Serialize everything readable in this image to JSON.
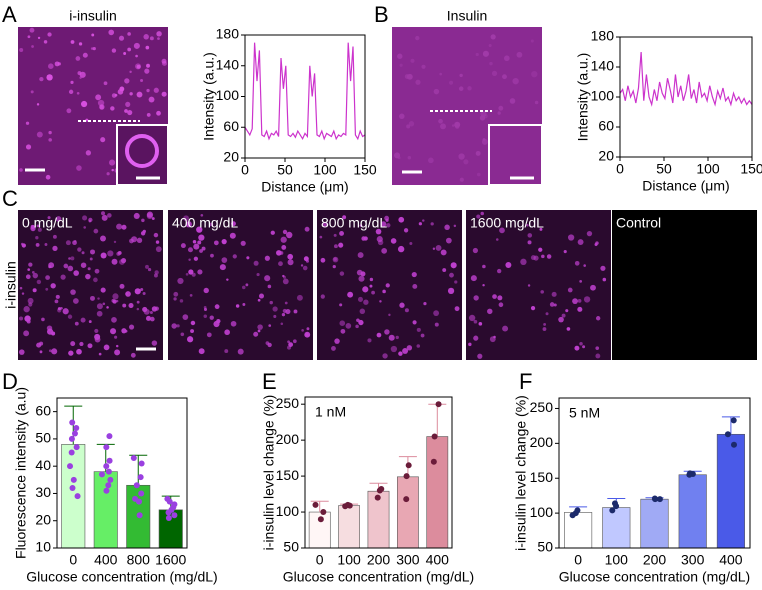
{
  "panel_labels": [
    "A",
    "B",
    "C",
    "D",
    "E",
    "F"
  ],
  "images": {
    "a_title": "i-insulin",
    "b_title": "Insulin",
    "c_row_label": "i-insulin",
    "c_labels": [
      "0 mg/dL",
      "400 mg/dL",
      "800 mg/dL",
      "1600 mg/dL",
      "Control"
    ]
  },
  "chart_data": [
    {
      "type": "line",
      "x_label": "Distance (μm)",
      "y_label": "Intensity (a.u.)",
      "color": "#cc33cc",
      "x": [
        0,
        3,
        6,
        9,
        12,
        15,
        18,
        21,
        24,
        27,
        30,
        33,
        36,
        39,
        42,
        45,
        48,
        51,
        54,
        57,
        60,
        63,
        66,
        69,
        72,
        75,
        78,
        81,
        84,
        87,
        90,
        93,
        96,
        99,
        102,
        105,
        108,
        111,
        114,
        117,
        120,
        123,
        126,
        129,
        132,
        135,
        138,
        141,
        144,
        147,
        150
      ],
      "values": [
        60,
        55,
        50,
        58,
        170,
        120,
        160,
        50,
        48,
        55,
        45,
        52,
        50,
        55,
        48,
        150,
        110,
        140,
        50,
        48,
        52,
        47,
        55,
        50,
        45,
        52,
        48,
        140,
        100,
        130,
        50,
        48,
        55,
        45,
        52,
        50,
        48,
        55,
        45,
        50,
        48,
        52,
        50,
        170,
        120,
        165,
        50,
        45,
        55,
        48,
        50
      ],
      "xlim": [
        0,
        150
      ],
      "xticks": [
        0,
        50,
        100,
        150
      ],
      "ylim": [
        20,
        180
      ],
      "yticks": [
        20,
        60,
        100,
        140,
        180
      ]
    },
    {
      "type": "line",
      "x_label": "Distance (μm)",
      "y_label": "Intensity (a.u.)",
      "color": "#cc33cc",
      "x": [
        0,
        3,
        6,
        9,
        12,
        15,
        18,
        21,
        24,
        27,
        30,
        33,
        36,
        39,
        42,
        45,
        48,
        51,
        54,
        57,
        60,
        63,
        66,
        69,
        72,
        75,
        78,
        81,
        84,
        87,
        90,
        93,
        96,
        99,
        102,
        105,
        108,
        111,
        114,
        117,
        120,
        123,
        126,
        129,
        132,
        135,
        138,
        141,
        144,
        147,
        150
      ],
      "values": [
        105,
        110,
        95,
        115,
        100,
        108,
        92,
        112,
        160,
        95,
        130,
        100,
        90,
        110,
        95,
        120,
        105,
        98,
        125,
        110,
        92,
        130,
        100,
        115,
        95,
        108,
        130,
        98,
        110,
        92,
        120,
        100,
        105,
        95,
        115,
        100,
        90,
        108,
        98,
        112,
        95,
        100,
        90,
        105,
        95,
        100,
        92,
        98,
        90,
        95,
        90
      ],
      "xlim": [
        0,
        150
      ],
      "xticks": [
        0,
        50,
        100,
        150
      ],
      "ylim": [
        20,
        180
      ],
      "yticks": [
        20,
        60,
        100,
        140,
        180
      ]
    },
    {
      "type": "bar",
      "x_label": "Glucose concentration (mg/dL)",
      "y_label": "Fluorescence intensity (a.u)",
      "categories": [
        "0",
        "400",
        "800",
        "1600"
      ],
      "values": [
        48,
        38,
        33,
        24
      ],
      "errors": [
        14,
        10,
        11,
        5
      ],
      "colors": [
        "#ccffcc",
        "#66ee66",
        "#33bb33",
        "#006600"
      ],
      "point_color": "#9a40e0",
      "points": [
        [
          56,
          54,
          52,
          50,
          47,
          45,
          40,
          35,
          32,
          29
        ],
        [
          51,
          47,
          42,
          40,
          38,
          37,
          35,
          33,
          31
        ],
        [
          43,
          41,
          36,
          33,
          30,
          28,
          27,
          22
        ],
        [
          28,
          27,
          26,
          25,
          24,
          23,
          22,
          21
        ]
      ],
      "ylim": [
        10,
        65
      ],
      "yticks": [
        10,
        20,
        30,
        40,
        50,
        60
      ]
    },
    {
      "type": "bar",
      "x_label": "Glucose concentration (mg/dL)",
      "y_label": "i-insulin level change (%)",
      "annotation": "1 nM",
      "categories": [
        "0",
        "100",
        "200",
        "300",
        "400"
      ],
      "values": [
        100,
        109,
        129,
        149,
        205
      ],
      "errors": [
        15,
        2,
        11,
        28,
        45
      ],
      "colors": [
        "#fff6f6",
        "#f6dde0",
        "#efc4cc",
        "#e8a7b3",
        "#dc8c9d"
      ],
      "point_color": "#6b1c3a",
      "points": [
        [
          90,
          100,
          110
        ],
        [
          108,
          109,
          110
        ],
        [
          120,
          130,
          132
        ],
        [
          118,
          150,
          165
        ],
        [
          170,
          205,
          250
        ]
      ],
      "ylim": [
        50,
        260
      ],
      "yticks": [
        50,
        100,
        150,
        200,
        250
      ]
    },
    {
      "type": "bar",
      "x_label": "Glucose concentration (mg/dL)",
      "y_label": "i-insulin level change (%)",
      "annotation": "5 nM",
      "categories": [
        "0",
        "100",
        "200",
        "300",
        "400"
      ],
      "values": [
        101,
        108,
        120,
        155,
        213
      ],
      "errors": [
        8,
        13,
        2,
        5,
        25
      ],
      "colors": [
        "#ffffff",
        "#c0c8ff",
        "#a0aaf5",
        "#7080f0",
        "#4a5ae8"
      ],
      "point_color": "#1c2a6b",
      "points": [
        [
          97,
          100,
          104
        ],
        [
          104,
          110,
          114
        ],
        [
          120,
          120,
          121
        ],
        [
          155,
          156,
          157
        ],
        [
          198,
          213,
          233
        ]
      ],
      "ylim": [
        50,
        265
      ],
      "yticks": [
        50,
        100,
        150,
        200,
        250
      ]
    }
  ]
}
